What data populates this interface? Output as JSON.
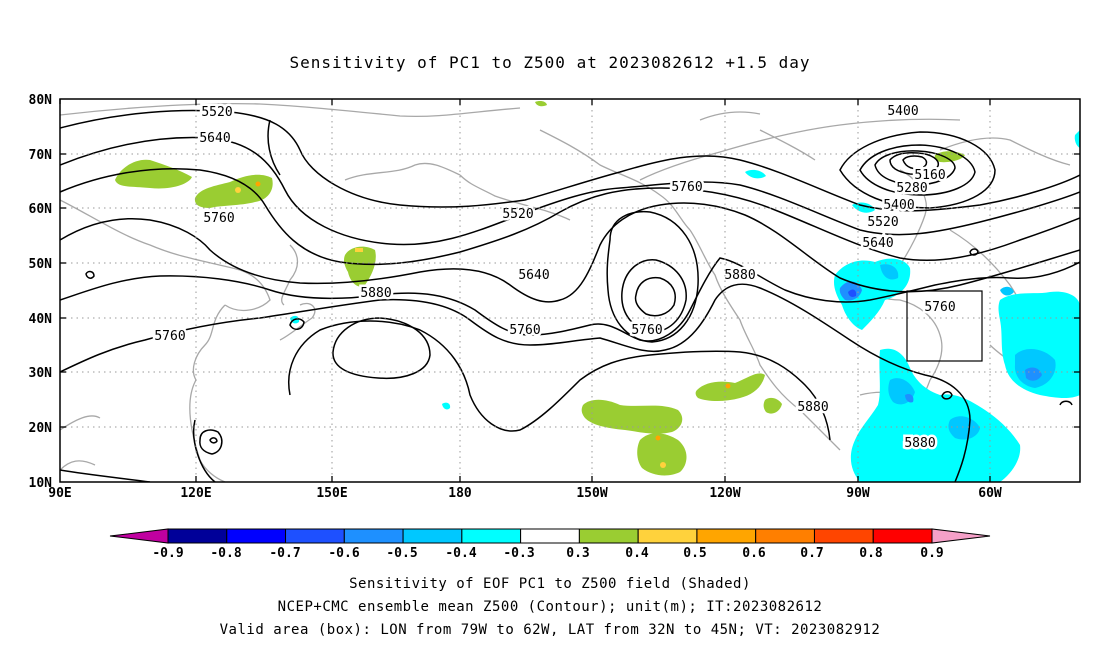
{
  "title": "Sensitivity of PC1 to Z500 at 2023082612 +1.5 day",
  "lon_labels": [
    "90E",
    "120E",
    "150E",
    "180",
    "150W",
    "120W",
    "90W",
    "60W"
  ],
  "lat_labels": [
    "80N",
    "70N",
    "60N",
    "50N",
    "40N",
    "30N",
    "20N",
    "10N"
  ],
  "contour_labels": {
    "c5520a": "5520",
    "c5640a": "5640",
    "c5760a": "5760",
    "c5760b": "5760",
    "c5880a": "5880",
    "c5520b": "5520",
    "c5640b": "5640",
    "c5760c": "5760",
    "c5760d": "5760",
    "c5760e": "5760",
    "c5880b": "5880",
    "c5400a": "5400",
    "c5160": "5160",
    "c5280": "5280",
    "c5400b": "5400",
    "c5520c": "5520",
    "c5640c": "5640",
    "c5760f": "5760",
    "c5880c": "5880",
    "c5880d": "5880"
  },
  "colorbar": {
    "labels": [
      "-0.9",
      "-0.8",
      "-0.7",
      "-0.6",
      "-0.5",
      "-0.4",
      "-0.3",
      "0.3",
      "0.4",
      "0.5",
      "0.6",
      "0.7",
      "0.8",
      "0.9"
    ],
    "colors": [
      "#000099",
      "#0000ff",
      "#1e50ff",
      "#1e90ff",
      "#00c8ff",
      "#00ffff",
      "#ffffff",
      "#9acd32",
      "#ffd23c",
      "#ffa500",
      "#ff7f00",
      "#ff4500",
      "#ff0000"
    ],
    "end_low_color": "#c000a0",
    "end_high_color": "#f5a0c8"
  },
  "footer": {
    "line1": "Sensitivity of EOF PC1 to Z500 field (Shaded)",
    "line2": "NCEP+CMC ensemble mean Z500 (Contour); unit(m); IT:2023082612",
    "line3": "Valid area (box): LON from 79W to 62W, LAT from 32N to 45N; VT: 2023082912"
  }
}
